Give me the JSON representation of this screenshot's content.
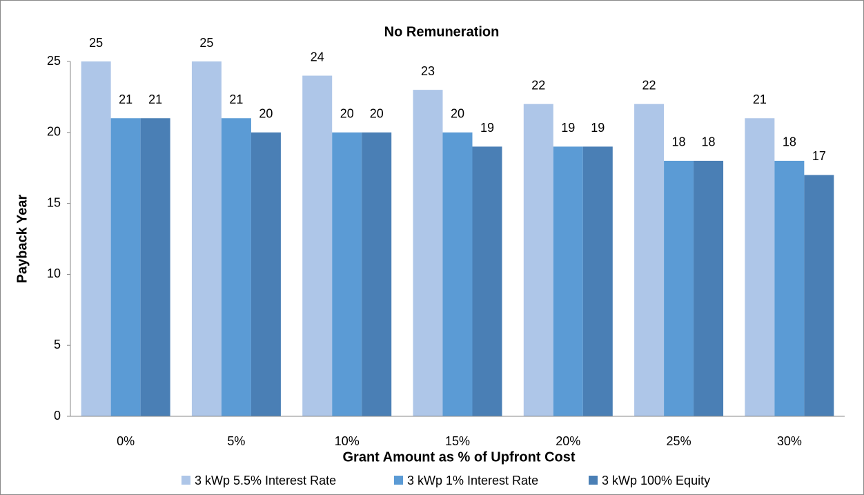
{
  "chart_data": {
    "type": "bar",
    "title": "No Remuneration",
    "x_label": "Grant Amount as % of Upfront Cost",
    "y_label": "Payback Year",
    "categories": [
      "0%",
      "5%",
      "10%",
      "15%",
      "20%",
      "25%",
      "30%"
    ],
    "series": [
      {
        "name": "3 kWp 5.5% Interest Rate",
        "color": "#aec6e8",
        "values": [
          25,
          25,
          24,
          23,
          22,
          22,
          21
        ]
      },
      {
        "name": "3 kWp 1% Interest Rate",
        "color": "#5b9bd5",
        "values": [
          21,
          21,
          20,
          20,
          19,
          18,
          18
        ]
      },
      {
        "name": "3 kWp 100% Equity",
        "color": "#4a7fb5",
        "values": [
          21,
          20,
          20,
          19,
          19,
          18,
          17
        ]
      }
    ],
    "ylim": [
      0,
      25
    ],
    "yticks": [
      0,
      5,
      10,
      15,
      20,
      25
    ],
    "grid": false,
    "legend": "bottom"
  }
}
